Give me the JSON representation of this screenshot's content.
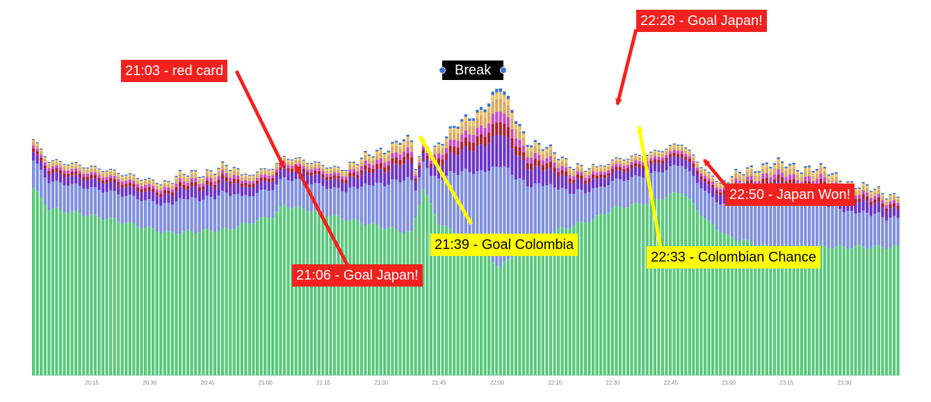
{
  "chart_data": {
    "type": "bar",
    "stacked": true,
    "x_start": "20:00",
    "x_end": "23:44",
    "interval_minutes": 1,
    "x_ticks": [
      "20:15",
      "20:30",
      "20:45",
      "21:00",
      "21:15",
      "21:30",
      "21:45",
      "22:00",
      "22:15",
      "22:30",
      "22:45",
      "23:00",
      "23:15",
      "23:30"
    ],
    "legend": "none",
    "grid": false,
    "layer_colors": [
      "#5ac87c",
      "#7f8fe0",
      "#6b34c9",
      "#a8242e",
      "#c94bc6",
      "#d6aa63",
      "#e8c36a",
      "#3a6fd8"
    ],
    "series_shape": {
      "total_keypoints": [
        [
          "20:00",
          170
        ],
        [
          "20:05",
          195
        ],
        [
          "20:10",
          205
        ],
        [
          "20:20",
          250
        ],
        [
          "20:30",
          270
        ],
        [
          "20:40",
          290
        ],
        [
          "20:50",
          300
        ],
        [
          "20:58",
          280
        ],
        [
          "21:03",
          235
        ],
        [
          "21:05",
          245
        ],
        [
          "21:10",
          280
        ],
        [
          "21:25",
          310
        ],
        [
          "21:35",
          340
        ],
        [
          "21:38",
          335
        ],
        [
          "21:39",
          240
        ],
        [
          "21:41",
          315
        ],
        [
          "21:50",
          360
        ],
        [
          "21:58",
          395
        ],
        [
          "22:01",
          415
        ],
        [
          "22:08",
          340
        ],
        [
          "22:20",
          305
        ],
        [
          "22:27",
          290
        ],
        [
          "22:28",
          230
        ],
        [
          "22:30",
          265
        ],
        [
          "22:35",
          245
        ],
        [
          "22:40",
          250
        ],
        [
          "22:45",
          245
        ],
        [
          "22:50",
          220
        ],
        [
          "22:55",
          260
        ],
        [
          "23:05",
          300
        ],
        [
          "23:15",
          305
        ],
        [
          "23:25",
          295
        ],
        [
          "23:35",
          270
        ],
        [
          "23:44",
          260
        ]
      ],
      "green_keypoints": [
        [
          "20:00",
          270
        ],
        [
          "20:04",
          240
        ],
        [
          "20:10",
          235
        ],
        [
          "20:20",
          225
        ],
        [
          "20:35",
          205
        ],
        [
          "20:50",
          210
        ],
        [
          "21:02",
          230
        ],
        [
          "21:05",
          245
        ],
        [
          "21:10",
          240
        ],
        [
          "21:25",
          220
        ],
        [
          "21:38",
          205
        ],
        [
          "21:41",
          270
        ],
        [
          "21:45",
          220
        ],
        [
          "21:55",
          185
        ],
        [
          "22:01",
          155
        ],
        [
          "22:08",
          195
        ],
        [
          "22:25",
          225
        ],
        [
          "22:30",
          240
        ],
        [
          "22:40",
          250
        ],
        [
          "22:48",
          265
        ],
        [
          "22:55",
          220
        ],
        [
          "23:00",
          200
        ],
        [
          "23:10",
          185
        ],
        [
          "23:30",
          185
        ],
        [
          "23:44",
          185
        ]
      ]
    },
    "annotations": [
      {
        "label": "21:03 - red card",
        "time": "21:03",
        "kind": "negative"
      },
      {
        "label": "21:06 - Goal Japan!",
        "time": "21:06",
        "kind": "negative"
      },
      {
        "label": "21:39 - Goal Colombia",
        "time": "21:39",
        "kind": "positive"
      },
      {
        "label": "Break",
        "time": "21:55",
        "kind": "period"
      },
      {
        "label": "22:28 - Goal Japan!",
        "time": "22:28",
        "kind": "negative"
      },
      {
        "label": "22:33 - Colombian Chance",
        "time": "22:33",
        "kind": "positive"
      },
      {
        "label": "22:50 - Japan Won!",
        "time": "22:50",
        "kind": "negative"
      }
    ]
  }
}
